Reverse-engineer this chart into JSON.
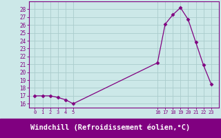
{
  "x": [
    0,
    1,
    2,
    3,
    4,
    5,
    16,
    17,
    18,
    19,
    20,
    21,
    22,
    23
  ],
  "y": [
    17,
    17,
    17,
    16.8,
    16.5,
    16,
    21.2,
    26.1,
    27.3,
    28.2,
    26.7,
    23.8,
    20.9,
    18.5
  ],
  "last_point_y": 17,
  "line_color": "#800080",
  "marker": "D",
  "marker_size": 2.5,
  "bg_color": "#cce8e8",
  "grid_color": "#aacccc",
  "xlabel": "Windchill (Refroidissement éolien,°C)",
  "xlabel_bg": "#800080",
  "xlabel_color": "#ffffff",
  "ylabel_ticks": [
    16,
    17,
    18,
    19,
    20,
    21,
    22,
    23,
    24,
    25,
    26,
    27,
    28
  ],
  "xticks_left": [
    0,
    1,
    2,
    3,
    4,
    5
  ],
  "xticks_right": [
    16,
    17,
    18,
    19,
    20,
    21,
    22,
    23
  ],
  "ylim": [
    15.5,
    29.0
  ],
  "xlim": [
    -0.8,
    24.0
  ],
  "tick_color": "#800080",
  "spine_color": "#800080"
}
